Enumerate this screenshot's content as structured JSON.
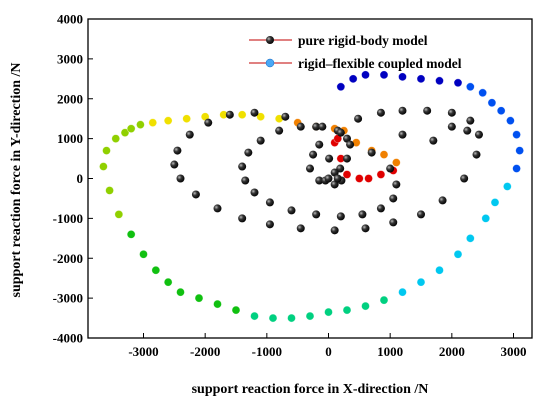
{
  "chart_data": {
    "type": "scatter",
    "title": "",
    "xlabel": "support reaction force in X-direction /N",
    "ylabel": "support reaction force in Y-direction /N",
    "xlim": [
      -3900,
      3300
    ],
    "ylim": [
      -4000,
      4000
    ],
    "xticks": [
      -3000,
      -2000,
      -1000,
      0,
      1000,
      2000,
      3000
    ],
    "yticks": [
      -4000,
      -3000,
      -2000,
      -1000,
      0,
      1000,
      2000,
      3000,
      4000
    ],
    "xtick_labels": [
      "-3000",
      "-2000",
      "-1000",
      "0",
      "1000",
      "2000",
      "3000"
    ],
    "ytick_labels": [
      "-4000",
      "-3000",
      "-2000",
      "-1000",
      "0",
      "1000",
      "2000",
      "3000",
      "4000"
    ],
    "grid": false,
    "legend_position": "top-right",
    "series": [
      {
        "name": "pure rigid-body model",
        "color": "#000000",
        "marker": "sphere",
        "x": [
          -250,
          10,
          190,
          210,
          100,
          -150,
          -300,
          -150,
          150,
          480,
          850,
          1200,
          1600,
          2000,
          2300,
          2440,
          2400,
          2200,
          1850,
          1500,
          1050,
          600,
          100,
          -450,
          -950,
          -1400,
          -1800,
          -2150,
          -2400,
          -2500,
          -2450,
          -2250,
          -1950,
          -1600,
          -1200,
          -700,
          -200,
          300,
          700,
          1000,
          1100,
          1050,
          850,
          550,
          200,
          -200,
          -600,
          -950,
          -1200,
          -1350,
          -1400,
          -1300,
          -1100,
          -800,
          -450,
          -100,
          200,
          350,
          300,
          100,
          -50,
          0,
          150,
          1200,
          1700,
          2000,
          2250
        ],
        "y": [
          600,
          500,
          250,
          -50,
          -150,
          -50,
          250,
          850,
          1200,
          1500,
          1650,
          1700,
          1700,
          1650,
          1450,
          1100,
          600,
          0,
          -550,
          -900,
          -1100,
          -1250,
          -1300,
          -1250,
          -1150,
          -1000,
          -750,
          -400,
          0,
          350,
          700,
          1100,
          1400,
          1600,
          1650,
          1550,
          1300,
          1000,
          650,
          250,
          -150,
          -500,
          -750,
          -900,
          -950,
          -900,
          -800,
          -600,
          -350,
          -50,
          300,
          650,
          950,
          1200,
          1300,
          1300,
          1150,
          850,
          500,
          150,
          -50,
          0,
          0,
          1100,
          950,
          1300,
          1200
        ]
      },
      {
        "name": "rigid–flexible coupled model",
        "marker": "sphere",
        "colormap": [
          "#0000c0",
          "#0050f0",
          "#00c8f0",
          "#00d080",
          "#10c010",
          "#90d000",
          "#f0e000",
          "#f08000",
          "#e00000"
        ],
        "x": [
          200,
          400,
          600,
          900,
          1200,
          1500,
          1800,
          2100,
          2300,
          2500,
          2650,
          2800,
          2950,
          3050,
          3100,
          3050,
          2900,
          2700,
          2550,
          2300,
          2100,
          1800,
          1500,
          1200,
          900,
          600,
          300,
          0,
          -300,
          -600,
          -900,
          -1200,
          -1500,
          -1800,
          -2100,
          -2400,
          -2600,
          -2800,
          -3000,
          -3200,
          -3400,
          -3550,
          -3650,
          -3600,
          -3450,
          -3300,
          -3200,
          -3050,
          -2850,
          -2600,
          -2300,
          -2000,
          -1700,
          -1400,
          -1100,
          -800,
          -500,
          -200,
          100,
          250,
          450,
          700,
          900,
          1100,
          1050,
          850,
          650,
          500,
          300,
          200,
          100,
          150
        ],
        "y": [
          2300,
          2500,
          2600,
          2600,
          2550,
          2500,
          2450,
          2400,
          2300,
          2150,
          1900,
          1700,
          1450,
          1100,
          700,
          250,
          -200,
          -600,
          -1000,
          -1500,
          -1900,
          -2300,
          -2600,
          -2850,
          -3050,
          -3200,
          -3300,
          -3350,
          -3450,
          -3500,
          -3500,
          -3450,
          -3300,
          -3150,
          -3000,
          -2850,
          -2600,
          -2300,
          -1900,
          -1400,
          -900,
          -300,
          300,
          700,
          1000,
          1150,
          1250,
          1350,
          1400,
          1450,
          1500,
          1550,
          1600,
          1600,
          1550,
          1500,
          1400,
          1300,
          1250,
          1200,
          900,
          700,
          600,
          400,
          200,
          100,
          0,
          0,
          100,
          500,
          900,
          1000
        ]
      }
    ]
  }
}
